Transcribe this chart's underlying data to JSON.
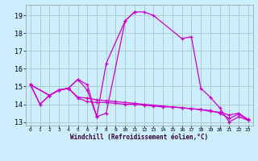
{
  "title": "",
  "xlabel": "Windchill (Refroidissement éolien,°C)",
  "bg_color": "#cceeff",
  "grid_color": "#aacccc",
  "line_color": "#cc00cc",
  "xlim": [
    -0.5,
    23.5
  ],
  "ylim": [
    12.8,
    19.6
  ],
  "xticks": [
    0,
    1,
    2,
    3,
    4,
    5,
    6,
    7,
    8,
    9,
    10,
    11,
    12,
    13,
    14,
    15,
    16,
    17,
    18,
    19,
    20,
    21,
    22,
    23
  ],
  "yticks": [
    13,
    14,
    15,
    16,
    17,
    18,
    19
  ],
  "lines": [
    {
      "x": [
        0,
        1,
        2,
        3,
        4,
        5,
        6,
        7,
        8,
        10,
        11,
        12,
        13,
        16,
        17,
        18,
        19,
        20,
        21,
        22,
        23
      ],
      "y": [
        15.1,
        14.0,
        14.5,
        14.8,
        14.9,
        15.4,
        15.1,
        13.3,
        13.5,
        18.7,
        19.2,
        19.2,
        19.0,
        17.7,
        17.8,
        14.9,
        14.4,
        13.8,
        13.0,
        13.3,
        13.1
      ]
    },
    {
      "x": [
        0,
        1,
        2,
        3,
        4,
        5,
        6,
        7,
        8,
        10,
        11
      ],
      "y": [
        15.1,
        14.0,
        14.5,
        14.8,
        14.9,
        15.4,
        14.8,
        13.3,
        16.3,
        18.7,
        19.2
      ]
    },
    {
      "x": [
        0,
        2,
        3,
        4,
        5,
        6,
        7,
        8,
        9,
        10,
        11,
        12,
        13,
        14,
        15,
        16,
        17,
        18,
        19,
        20,
        21,
        22,
        23
      ],
      "y": [
        15.1,
        14.5,
        14.8,
        14.9,
        14.35,
        14.15,
        14.1,
        14.1,
        14.05,
        14.0,
        14.0,
        13.95,
        13.9,
        13.85,
        13.85,
        13.8,
        13.75,
        13.7,
        13.65,
        13.5,
        13.2,
        13.45,
        13.1
      ]
    },
    {
      "x": [
        0,
        2,
        3,
        4,
        5,
        6,
        7,
        8,
        9,
        10,
        11,
        12,
        13,
        14,
        15,
        16,
        17,
        18,
        19,
        20,
        21,
        22,
        23
      ],
      "y": [
        15.1,
        14.5,
        14.8,
        14.9,
        14.4,
        14.35,
        14.25,
        14.2,
        14.15,
        14.1,
        14.05,
        14.0,
        13.95,
        13.9,
        13.85,
        13.8,
        13.75,
        13.7,
        13.6,
        13.55,
        13.4,
        13.5,
        13.15
      ]
    }
  ]
}
